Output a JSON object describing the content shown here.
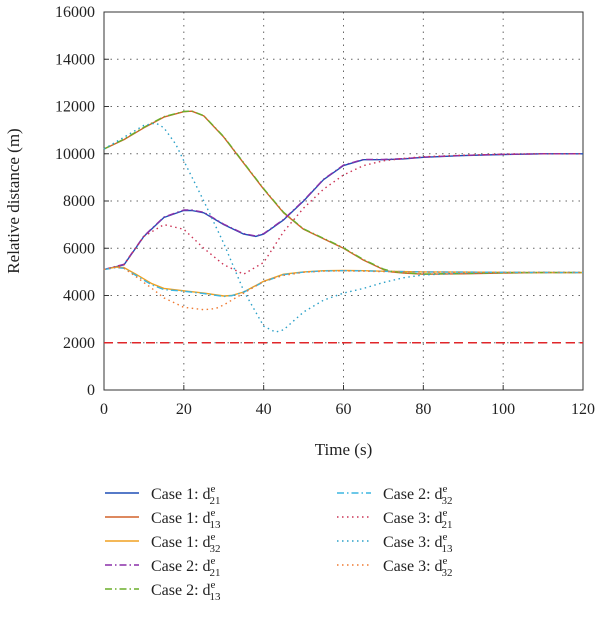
{
  "chart_data": {
    "type": "line",
    "xlabel": "Time (s)",
    "ylabel": "Relative distance (m)",
    "xlim": [
      0,
      120
    ],
    "ylim": [
      0,
      16000
    ],
    "xticks": [
      0,
      20,
      40,
      60,
      80,
      100,
      120
    ],
    "yticks": [
      0,
      2000,
      4000,
      6000,
      8000,
      10000,
      12000,
      14000,
      16000
    ],
    "grid": "dotted",
    "legend_position": "bottom",
    "reference_line": {
      "y": 2000,
      "color": "#e0262a",
      "style": "dashed"
    },
    "series": [
      {
        "name_prefix": "Case 1: d",
        "sup": "e",
        "sub": "21",
        "color": "#1f4fb5",
        "style": "solid",
        "x": [
          0,
          5,
          10,
          15,
          20,
          22,
          25,
          30,
          35,
          38,
          40,
          45,
          50,
          55,
          60,
          65,
          70,
          75,
          80,
          90,
          100,
          110,
          120
        ],
        "y": [
          5100,
          5300,
          6500,
          7300,
          7600,
          7600,
          7500,
          7000,
          6600,
          6500,
          6600,
          7200,
          8000,
          8900,
          9500,
          9750,
          9750,
          9780,
          9850,
          9920,
          9970,
          10000,
          10000
        ]
      },
      {
        "name_prefix": "Case 1: d",
        "sup": "e",
        "sub": "13",
        "color": "#d2622a",
        "style": "solid",
        "x": [
          0,
          5,
          10,
          15,
          20,
          22,
          25,
          30,
          35,
          40,
          45,
          50,
          55,
          60,
          65,
          70,
          72,
          75,
          80,
          90,
          100,
          110,
          120
        ],
        "y": [
          10200,
          10600,
          11100,
          11550,
          11780,
          11800,
          11600,
          10700,
          9600,
          8500,
          7500,
          6800,
          6400,
          6000,
          5500,
          5100,
          5000,
          4950,
          4900,
          4920,
          4950,
          4970,
          4970
        ]
      },
      {
        "name_prefix": "Case 1: d",
        "sup": "e",
        "sub": "32",
        "color": "#f0a020",
        "style": "solid",
        "x": [
          0,
          3,
          5,
          8,
          12,
          15,
          20,
          25,
          30,
          32,
          35,
          40,
          45,
          50,
          55,
          60,
          65,
          70,
          80,
          90,
          100,
          110,
          120
        ],
        "y": [
          5100,
          5200,
          5180,
          4900,
          4500,
          4300,
          4200,
          4100,
          3980,
          4000,
          4150,
          4600,
          4900,
          5000,
          5050,
          5060,
          5050,
          5030,
          5000,
          4990,
          4980,
          4975,
          4970
        ]
      },
      {
        "name_prefix": "Case 2: d",
        "sup": "e",
        "sub": "21",
        "color": "#8a2fa8",
        "style": "dashdot",
        "x": [
          0,
          5,
          10,
          15,
          20,
          22,
          25,
          30,
          35,
          38,
          40,
          45,
          50,
          55,
          60,
          65,
          70,
          75,
          80,
          90,
          100,
          110,
          120
        ],
        "y": [
          5100,
          5320,
          6520,
          7320,
          7620,
          7620,
          7520,
          7020,
          6620,
          6520,
          6620,
          7220,
          8020,
          8920,
          9520,
          9760,
          9760,
          9790,
          9860,
          9930,
          9975,
          10000,
          10000
        ]
      },
      {
        "name_prefix": "Case 2: d",
        "sup": "e",
        "sub": "13",
        "color": "#6aae2a",
        "style": "dashdot",
        "x": [
          0,
          5,
          10,
          15,
          20,
          22,
          25,
          30,
          35,
          40,
          45,
          50,
          55,
          60,
          65,
          70,
          72,
          75,
          80,
          90,
          100,
          110,
          120
        ],
        "y": [
          10200,
          10620,
          11120,
          11570,
          11790,
          11810,
          11610,
          10720,
          9620,
          8520,
          7520,
          6820,
          6420,
          6020,
          5520,
          5120,
          5020,
          4960,
          4910,
          4930,
          4960,
          4970,
          4970
        ]
      },
      {
        "name_prefix": "Case 2: d",
        "sup": "e",
        "sub": "32",
        "color": "#3bb5e0",
        "style": "dashdot",
        "x": [
          0,
          3,
          5,
          8,
          12,
          15,
          20,
          25,
          30,
          32,
          35,
          40,
          45,
          50,
          55,
          60,
          65,
          70,
          80,
          90,
          100,
          110,
          120
        ],
        "y": [
          5100,
          5180,
          5150,
          4850,
          4450,
          4250,
          4180,
          4080,
          3960,
          3990,
          4140,
          4580,
          4880,
          4990,
          5040,
          5050,
          5045,
          5025,
          5000,
          4990,
          4980,
          4975,
          4970
        ]
      },
      {
        "name_prefix": "Case 3: d",
        "sup": "e",
        "sub": "21",
        "color": "#cc3355",
        "style": "dotted",
        "x": [
          0,
          5,
          10,
          15,
          20,
          25,
          30,
          35,
          40,
          45,
          50,
          55,
          60,
          65,
          70,
          75,
          80,
          90,
          100,
          110,
          120
        ],
        "y": [
          5100,
          5300,
          6500,
          7000,
          6800,
          6000,
          5300,
          4900,
          5400,
          6700,
          7700,
          8500,
          9100,
          9500,
          9700,
          9800,
          9870,
          9940,
          9980,
          10000,
          10000
        ]
      },
      {
        "name_prefix": "Case 3: d",
        "sup": "e",
        "sub": "13",
        "color": "#2aa0c8",
        "style": "dotted",
        "x": [
          0,
          5,
          10,
          13,
          15,
          18,
          20,
          25,
          30,
          35,
          40,
          43,
          45,
          50,
          55,
          60,
          65,
          70,
          75,
          80,
          90,
          100,
          110,
          120
        ],
        "y": [
          10200,
          10700,
          11200,
          11300,
          11100,
          10400,
          9700,
          8000,
          6200,
          4200,
          2700,
          2450,
          2550,
          3300,
          3800,
          4100,
          4300,
          4550,
          4750,
          4870,
          4950,
          4970,
          4980,
          4980
        ]
      },
      {
        "name_prefix": "Case 3: d",
        "sup": "e",
        "sub": "32",
        "color": "#f07a30",
        "style": "dotted",
        "x": [
          0,
          3,
          5,
          8,
          12,
          15,
          20,
          25,
          28,
          30,
          35,
          40,
          45,
          50,
          55,
          60,
          65,
          70,
          80,
          90,
          100,
          110,
          120
        ],
        "y": [
          5100,
          5200,
          5150,
          4800,
          4300,
          3900,
          3500,
          3400,
          3450,
          3600,
          4100,
          4600,
          4850,
          4980,
          5030,
          5040,
          5030,
          5010,
          4990,
          4980,
          4975,
          4970,
          4970
        ]
      }
    ]
  }
}
